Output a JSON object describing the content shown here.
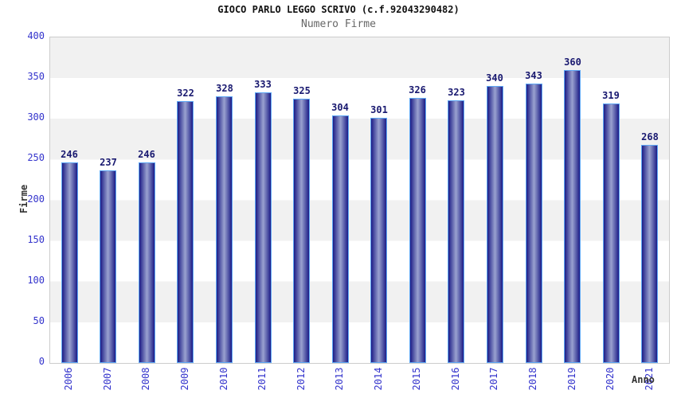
{
  "chart_data": {
    "type": "bar",
    "title": "GIOCO PARLO LEGGO SCRIVO (c.f.92043290482)",
    "subtitle": "Numero Firme",
    "xlabel": "Anno",
    "ylabel": "Firme",
    "categories": [
      "2006",
      "2007",
      "2008",
      "2009",
      "2010",
      "2011",
      "2012",
      "2013",
      "2014",
      "2015",
      "2016",
      "2017",
      "2018",
      "2019",
      "2020",
      "2021"
    ],
    "values": [
      246,
      237,
      246,
      322,
      328,
      333,
      325,
      304,
      301,
      326,
      323,
      340,
      343,
      360,
      319,
      268
    ],
    "ylim": [
      0,
      400
    ],
    "ytick_step": 50,
    "grid": "alternating-horizontal-bands",
    "legend": "none",
    "value_labels_shown": true
  },
  "colors": {
    "title": "#111111",
    "subtitle": "#666666",
    "tick_label": "#3333cc",
    "value_label": "#191970",
    "axis_title": "#333333",
    "bar_edge": "#1c1c86",
    "bar_center": "#9aa2d0",
    "bar_border": "#5fa8f5",
    "band_gray": "#f1f1f1",
    "band_white": "#ffffff",
    "plot_border": "#cccccc",
    "background": "#ffffff"
  }
}
